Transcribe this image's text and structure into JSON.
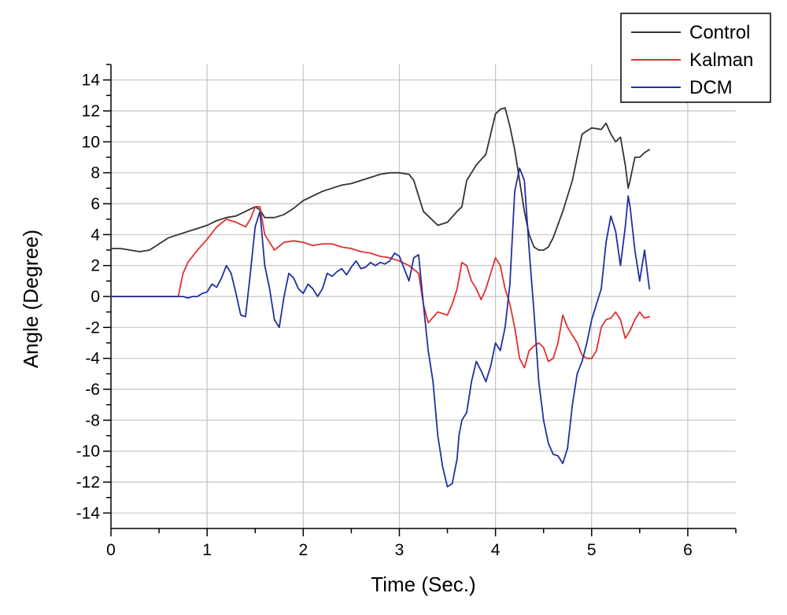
{
  "chart_data": {
    "type": "line",
    "title": "",
    "xlabel": "Time (Sec.)",
    "ylabel": "Angle (Degree)",
    "xlim": [
      0,
      6.5
    ],
    "ylim": [
      -15,
      15
    ],
    "x_ticks": [
      0,
      1,
      2,
      3,
      4,
      5,
      6
    ],
    "y_ticks": [
      -14,
      -12,
      -10,
      -8,
      -6,
      -4,
      -2,
      0,
      2,
      4,
      6,
      8,
      10,
      12,
      14
    ],
    "grid": true,
    "legend_position": "top-right",
    "series": [
      {
        "name": "Control",
        "color": "#333333",
        "x": [
          0,
          0.1,
          0.2,
          0.3,
          0.4,
          0.5,
          0.6,
          0.7,
          0.8,
          0.9,
          1.0,
          1.1,
          1.2,
          1.3,
          1.4,
          1.5,
          1.55,
          1.6,
          1.7,
          1.8,
          1.9,
          2.0,
          2.1,
          2.2,
          2.3,
          2.4,
          2.5,
          2.6,
          2.7,
          2.8,
          2.9,
          3.0,
          3.1,
          3.15,
          3.2,
          3.25,
          3.3,
          3.4,
          3.5,
          3.6,
          3.65,
          3.7,
          3.8,
          3.9,
          4.0,
          4.05,
          4.1,
          4.15,
          4.2,
          4.25,
          4.3,
          4.35,
          4.4,
          4.45,
          4.5,
          4.55,
          4.6,
          4.7,
          4.8,
          4.85,
          4.9,
          5.0,
          5.1,
          5.15,
          5.2,
          5.25,
          5.3,
          5.35,
          5.38,
          5.4,
          5.45,
          5.5,
          5.55,
          5.6
        ],
        "y": [
          3.1,
          3.1,
          3.0,
          2.9,
          3.0,
          3.4,
          3.8,
          4.0,
          4.2,
          4.4,
          4.6,
          4.9,
          5.1,
          5.2,
          5.5,
          5.8,
          5.6,
          5.1,
          5.1,
          5.3,
          5.7,
          6.2,
          6.5,
          6.8,
          7.0,
          7.2,
          7.3,
          7.5,
          7.7,
          7.9,
          8.0,
          8.0,
          7.9,
          7.5,
          6.5,
          5.5,
          5.2,
          4.6,
          4.8,
          5.5,
          5.8,
          7.5,
          8.5,
          9.2,
          11.8,
          12.1,
          12.2,
          11.0,
          9.5,
          7.5,
          5.5,
          4.0,
          3.2,
          3.0,
          3.0,
          3.2,
          3.8,
          5.5,
          7.5,
          9.0,
          10.5,
          10.9,
          10.8,
          11.2,
          10.5,
          10.0,
          10.3,
          8.5,
          7.0,
          7.5,
          9.0,
          9.0,
          9.3,
          9.5
        ]
      },
      {
        "name": "Kalman",
        "color": "#e03030",
        "x": [
          0,
          0.7,
          0.75,
          0.8,
          0.9,
          1.0,
          1.1,
          1.2,
          1.3,
          1.4,
          1.45,
          1.5,
          1.55,
          1.6,
          1.7,
          1.8,
          1.9,
          2.0,
          2.1,
          2.2,
          2.3,
          2.4,
          2.5,
          2.6,
          2.7,
          2.8,
          2.9,
          3.0,
          3.1,
          3.2,
          3.25,
          3.3,
          3.4,
          3.45,
          3.5,
          3.55,
          3.6,
          3.65,
          3.7,
          3.75,
          3.8,
          3.85,
          3.9,
          3.95,
          4.0,
          4.05,
          4.1,
          4.15,
          4.2,
          4.25,
          4.3,
          4.35,
          4.4,
          4.45,
          4.5,
          4.55,
          4.6,
          4.65,
          4.7,
          4.75,
          4.8,
          4.85,
          4.9,
          4.95,
          5.0,
          5.05,
          5.1,
          5.15,
          5.2,
          5.25,
          5.3,
          5.35,
          5.4,
          5.45,
          5.5,
          5.55,
          5.6
        ],
        "y": [
          0,
          0,
          1.5,
          2.2,
          3.0,
          3.7,
          4.5,
          5.0,
          4.8,
          4.5,
          5.0,
          5.8,
          5.8,
          4.0,
          3.0,
          3.5,
          3.6,
          3.5,
          3.3,
          3.4,
          3.4,
          3.2,
          3.1,
          2.9,
          2.8,
          2.6,
          2.5,
          2.3,
          2.0,
          1.5,
          -0.5,
          -1.7,
          -1.0,
          -1.1,
          -1.2,
          -0.5,
          0.5,
          2.2,
          2.0,
          1.0,
          0.5,
          -0.2,
          0.5,
          1.5,
          2.5,
          2.0,
          0.5,
          -0.5,
          -2.0,
          -4.0,
          -4.6,
          -3.5,
          -3.2,
          -3.0,
          -3.3,
          -4.2,
          -4.0,
          -3.0,
          -1.2,
          -2.0,
          -2.5,
          -3.0,
          -3.8,
          -4.0,
          -4.0,
          -3.5,
          -2.0,
          -1.5,
          -1.4,
          -1.0,
          -1.5,
          -2.7,
          -2.2,
          -1.5,
          -1.0,
          -1.4,
          -1.3
        ]
      },
      {
        "name": "DCM",
        "color": "#2030a0",
        "x": [
          0,
          0.7,
          0.75,
          0.8,
          0.85,
          0.9,
          0.95,
          1.0,
          1.05,
          1.1,
          1.15,
          1.2,
          1.25,
          1.3,
          1.35,
          1.4,
          1.45,
          1.5,
          1.55,
          1.6,
          1.65,
          1.7,
          1.75,
          1.8,
          1.85,
          1.9,
          1.95,
          2.0,
          2.05,
          2.1,
          2.15,
          2.2,
          2.25,
          2.3,
          2.35,
          2.4,
          2.45,
          2.5,
          2.55,
          2.6,
          2.65,
          2.7,
          2.75,
          2.8,
          2.85,
          2.9,
          2.95,
          3.0,
          3.05,
          3.1,
          3.15,
          3.2,
          3.25,
          3.3,
          3.35,
          3.4,
          3.45,
          3.5,
          3.55,
          3.6,
          3.62,
          3.65,
          3.7,
          3.75,
          3.8,
          3.85,
          3.9,
          3.95,
          4.0,
          4.05,
          4.1,
          4.15,
          4.2,
          4.25,
          4.3,
          4.35,
          4.4,
          4.45,
          4.5,
          4.55,
          4.6,
          4.65,
          4.7,
          4.75,
          4.8,
          4.85,
          4.9,
          4.95,
          5.0,
          5.05,
          5.1,
          5.15,
          5.2,
          5.25,
          5.3,
          5.35,
          5.38,
          5.4,
          5.45,
          5.5,
          5.55,
          5.6
        ],
        "y": [
          0,
          0,
          0,
          -0.1,
          0,
          0,
          0.2,
          0.3,
          0.8,
          0.6,
          1.2,
          2.0,
          1.5,
          0.2,
          -1.2,
          -1.3,
          1.5,
          4.5,
          5.5,
          2.0,
          0.5,
          -1.5,
          -2.0,
          0,
          1.5,
          1.2,
          0.5,
          0.2,
          0.8,
          0.5,
          0,
          0.5,
          1.5,
          1.3,
          1.6,
          1.8,
          1.4,
          1.9,
          2.3,
          1.8,
          1.9,
          2.2,
          2.0,
          2.2,
          2.1,
          2.3,
          2.8,
          2.6,
          1.8,
          1.0,
          2.5,
          2.7,
          -0.5,
          -3.5,
          -5.5,
          -9.0,
          -11.0,
          -12.3,
          -12.1,
          -10.5,
          -9.0,
          -8.0,
          -7.5,
          -5.5,
          -4.2,
          -4.8,
          -5.5,
          -4.5,
          -3.0,
          -3.5,
          -2.0,
          0.8,
          6.8,
          8.3,
          7.5,
          3.0,
          -1.0,
          -5.5,
          -8.0,
          -9.5,
          -10.2,
          -10.3,
          -10.8,
          -9.8,
          -7.0,
          -5.0,
          -4.2,
          -3.0,
          -1.5,
          -0.5,
          0.5,
          3.5,
          5.2,
          4.2,
          2.0,
          4.5,
          6.5,
          5.8,
          3.0,
          1.0,
          3.0,
          0.5
        ]
      }
    ]
  }
}
